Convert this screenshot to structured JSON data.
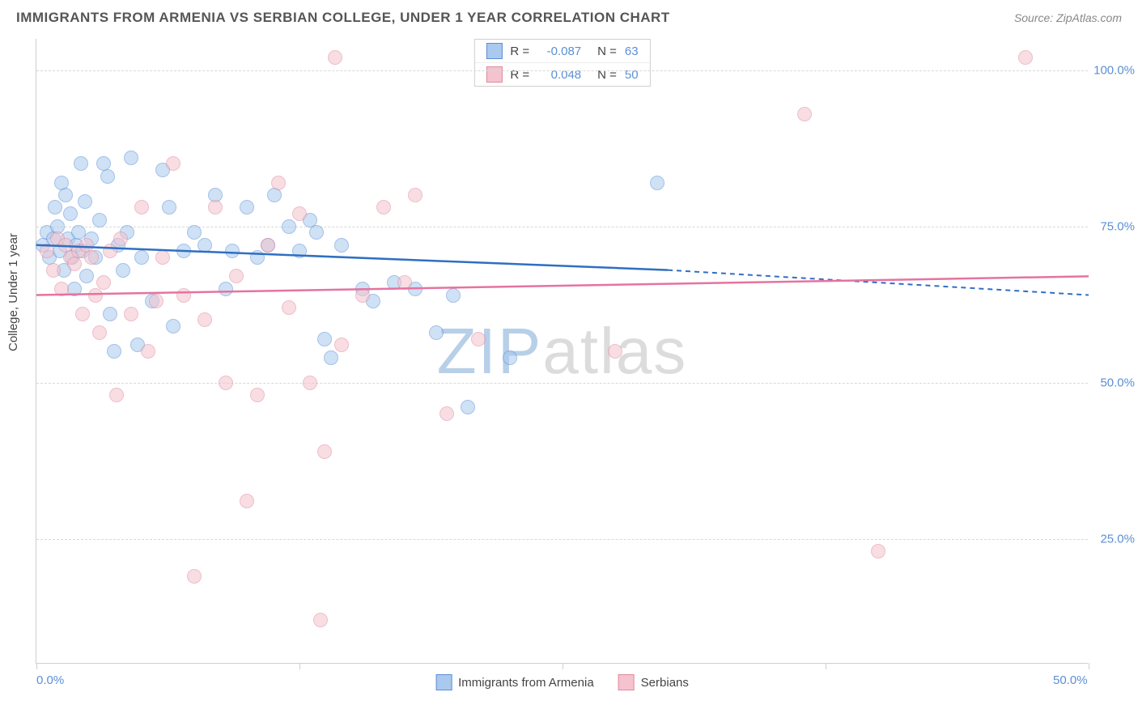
{
  "header": {
    "title": "IMMIGRANTS FROM ARMENIA VS SERBIAN COLLEGE, UNDER 1 YEAR CORRELATION CHART",
    "source_prefix": "Source:",
    "source_name": "ZipAtlas.com"
  },
  "watermark": {
    "part1": "ZIP",
    "part2": "atlas"
  },
  "chart": {
    "type": "scatter",
    "ylabel": "College, Under 1 year",
    "xlim": [
      0,
      50
    ],
    "ylim": [
      5,
      105
    ],
    "xticks": [
      0,
      12.5,
      25,
      37.5,
      50
    ],
    "xtick_labels": {
      "0": "0.0%",
      "50": "50.0%"
    },
    "yticks": [
      25,
      50,
      75,
      100
    ],
    "ytick_labels": [
      "25.0%",
      "50.0%",
      "75.0%",
      "100.0%"
    ],
    "grid_color": "#d8d8d8",
    "axis_color": "#cfcfcf",
    "background": "#ffffff",
    "marker_radius": 9,
    "marker_opacity": 0.55,
    "tick_label_color": "#5b8fd6",
    "axis_label_fontsize": 15
  },
  "series": [
    {
      "id": "armenia",
      "label": "Immigrants from Armenia",
      "fill": "#a9c9ee",
      "stroke": "#5b8fd6",
      "line_color": "#2f6fc2",
      "R": "-0.087",
      "N": "63",
      "trend": {
        "x1": 0,
        "y1": 72,
        "x2_solid": 30,
        "y2_solid": 68,
        "x2": 50,
        "y2": 64
      },
      "points": [
        [
          0.3,
          72
        ],
        [
          0.5,
          74
        ],
        [
          0.6,
          70
        ],
        [
          0.8,
          73
        ],
        [
          0.9,
          78
        ],
        [
          1.0,
          75
        ],
        [
          1.1,
          71
        ],
        [
          1.2,
          82
        ],
        [
          1.3,
          68
        ],
        [
          1.4,
          80
        ],
        [
          1.5,
          73
        ],
        [
          1.6,
          77
        ],
        [
          1.7,
          70
        ],
        [
          1.8,
          65
        ],
        [
          1.9,
          72
        ],
        [
          2.0,
          74
        ],
        [
          2.1,
          85
        ],
        [
          2.2,
          71
        ],
        [
          2.3,
          79
        ],
        [
          2.4,
          67
        ],
        [
          2.6,
          73
        ],
        [
          2.8,
          70
        ],
        [
          3.0,
          76
        ],
        [
          3.2,
          85
        ],
        [
          3.4,
          83
        ],
        [
          3.5,
          61
        ],
        [
          3.7,
          55
        ],
        [
          3.9,
          72
        ],
        [
          4.1,
          68
        ],
        [
          4.3,
          74
        ],
        [
          4.5,
          86
        ],
        [
          4.8,
          56
        ],
        [
          5.0,
          70
        ],
        [
          5.5,
          63
        ],
        [
          6.0,
          84
        ],
        [
          6.3,
          78
        ],
        [
          6.5,
          59
        ],
        [
          7.0,
          71
        ],
        [
          7.5,
          74
        ],
        [
          8.0,
          72
        ],
        [
          8.5,
          80
        ],
        [
          9.0,
          65
        ],
        [
          9.3,
          71
        ],
        [
          10.0,
          78
        ],
        [
          10.5,
          70
        ],
        [
          11.0,
          72
        ],
        [
          11.3,
          80
        ],
        [
          12.0,
          75
        ],
        [
          12.5,
          71
        ],
        [
          13.0,
          76
        ],
        [
          13.3,
          74
        ],
        [
          13.7,
          57
        ],
        [
          14.0,
          54
        ],
        [
          14.5,
          72
        ],
        [
          15.5,
          65
        ],
        [
          16.0,
          63
        ],
        [
          17.0,
          66
        ],
        [
          18.0,
          65
        ],
        [
          19.0,
          58
        ],
        [
          19.8,
          64
        ],
        [
          20.5,
          46
        ],
        [
          22.5,
          54
        ],
        [
          29.5,
          82
        ]
      ]
    },
    {
      "id": "serbia",
      "label": "Serbians",
      "fill": "#f4c3cd",
      "stroke": "#e08aa0",
      "line_color": "#e573a0",
      "R": "0.048",
      "N": "50",
      "trend": {
        "x1": 0,
        "y1": 64,
        "x2_solid": 50,
        "y2_solid": 67,
        "x2": 50,
        "y2": 67
      },
      "points": [
        [
          0.5,
          71
        ],
        [
          0.8,
          68
        ],
        [
          1.0,
          73
        ],
        [
          1.2,
          65
        ],
        [
          1.4,
          72
        ],
        [
          1.6,
          70
        ],
        [
          1.8,
          69
        ],
        [
          2.0,
          71
        ],
        [
          2.2,
          61
        ],
        [
          2.4,
          72
        ],
        [
          2.6,
          70
        ],
        [
          2.8,
          64
        ],
        [
          3.0,
          58
        ],
        [
          3.2,
          66
        ],
        [
          3.5,
          71
        ],
        [
          3.8,
          48
        ],
        [
          4.0,
          73
        ],
        [
          4.5,
          61
        ],
        [
          5.0,
          78
        ],
        [
          5.3,
          55
        ],
        [
          5.7,
          63
        ],
        [
          6.0,
          70
        ],
        [
          6.5,
          85
        ],
        [
          7.0,
          64
        ],
        [
          7.5,
          19
        ],
        [
          8.0,
          60
        ],
        [
          8.5,
          78
        ],
        [
          9.0,
          50
        ],
        [
          9.5,
          67
        ],
        [
          10.0,
          31
        ],
        [
          10.5,
          48
        ],
        [
          11.0,
          72
        ],
        [
          11.5,
          82
        ],
        [
          12.0,
          62
        ],
        [
          12.5,
          77
        ],
        [
          13.0,
          50
        ],
        [
          13.7,
          39
        ],
        [
          14.2,
          102
        ],
        [
          14.5,
          56
        ],
        [
          15.5,
          64
        ],
        [
          16.5,
          78
        ],
        [
          17.5,
          66
        ],
        [
          18.0,
          80
        ],
        [
          19.5,
          45
        ],
        [
          21.0,
          57
        ],
        [
          27.5,
          55
        ],
        [
          36.5,
          93
        ],
        [
          40.0,
          23
        ],
        [
          47.0,
          102
        ],
        [
          13.5,
          12
        ]
      ]
    }
  ],
  "legend_top": {
    "R_label": "R =",
    "N_label": "N ="
  },
  "legend_bottom_order": [
    "armenia",
    "serbia"
  ]
}
